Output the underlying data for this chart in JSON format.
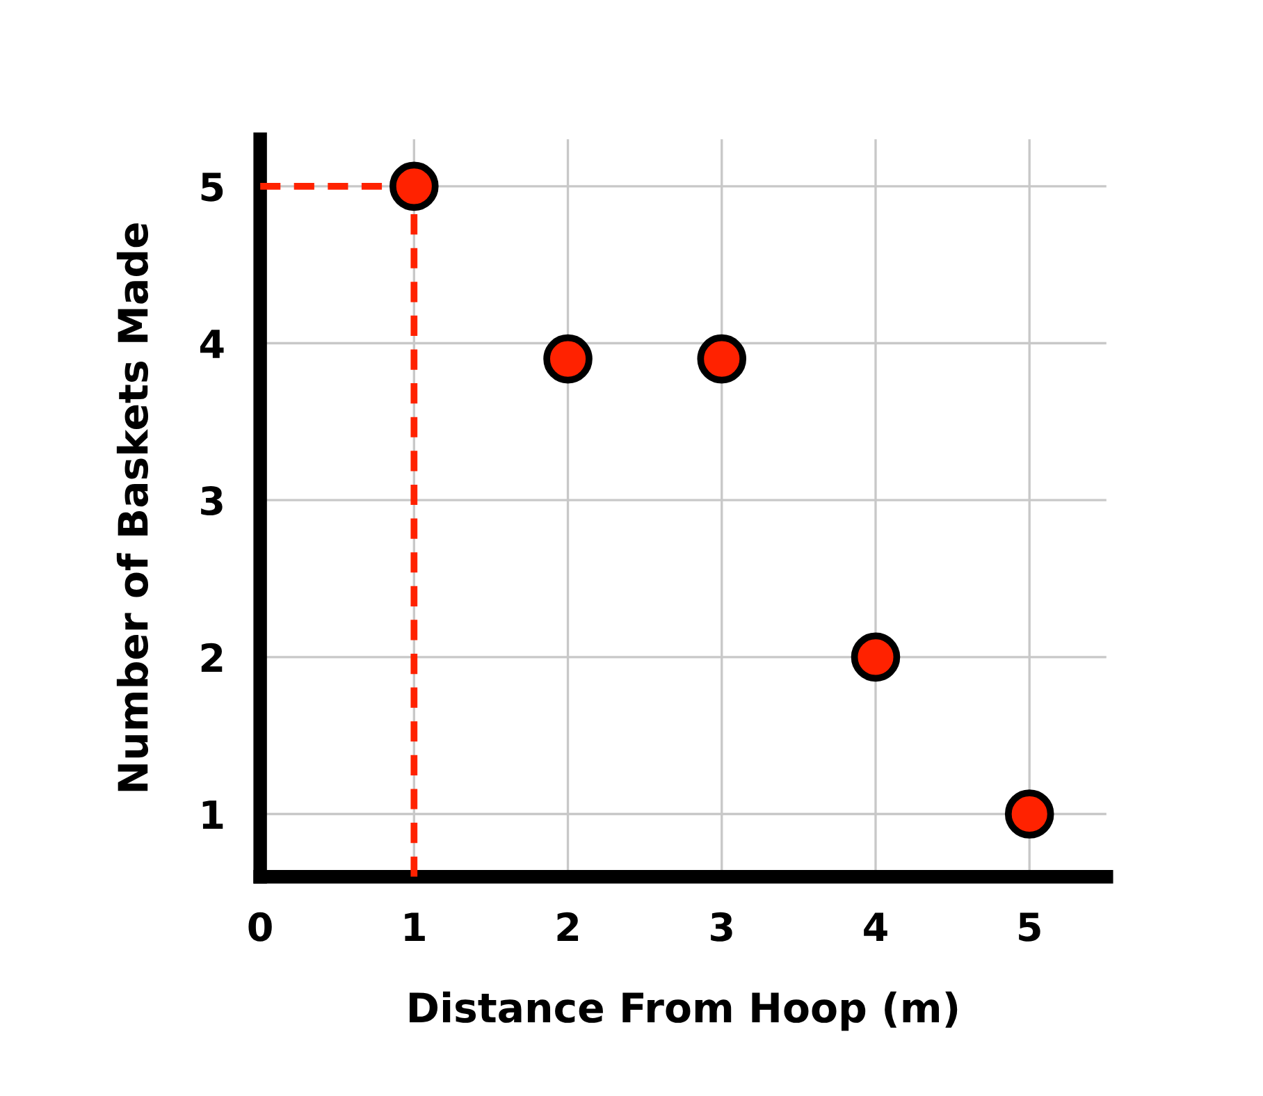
{
  "chart_data": {
    "type": "scatter",
    "xlabel": "Distance From Hoop (m)",
    "ylabel": "Number of Baskets Made",
    "x": [
      1,
      2,
      3,
      4,
      5
    ],
    "series": [
      {
        "color": "#ff2200",
        "values": [
          5,
          3.9,
          3.9,
          2,
          1
        ]
      }
    ],
    "xlim": [
      0,
      5.5
    ],
    "ylim": [
      0.6,
      5.3
    ],
    "xticks": [
      0,
      1,
      2,
      3,
      4,
      5
    ],
    "yticks": [
      1,
      2,
      3,
      4,
      5
    ],
    "ref_lines": [
      {
        "axis": "x",
        "value": 1,
        "color": "#ff2200",
        "line_style": "dashed"
      },
      {
        "axis": "y",
        "value": 5,
        "color": "#ff2200",
        "line_style": "dashed"
      }
    ],
    "grid": true,
    "marker": "circle"
  }
}
